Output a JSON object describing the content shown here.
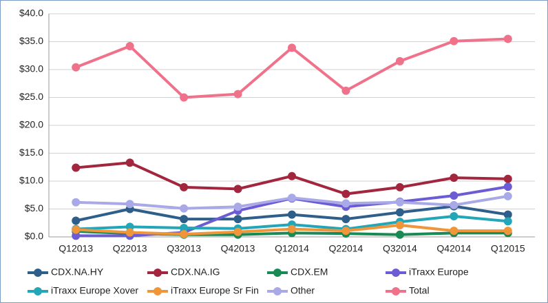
{
  "chart_data": {
    "type": "line",
    "categories": [
      "Q12013",
      "Q22013",
      "Q32013",
      "Q42013",
      "Q12014",
      "Q22014",
      "Q32014",
      "Q42014",
      "Q12015"
    ],
    "series": [
      {
        "name": "CDX.NA.HY",
        "color": "#2e5f8a",
        "values": [
          2.9,
          5.0,
          3.2,
          3.2,
          4.0,
          3.2,
          4.4,
          5.5,
          4.0
        ]
      },
      {
        "name": "CDX.NA.IG",
        "color": "#a3263f",
        "values": [
          12.4,
          13.3,
          8.9,
          8.6,
          10.9,
          7.7,
          8.9,
          10.6,
          10.4
        ]
      },
      {
        "name": "CDX.EM",
        "color": "#1a8a55",
        "values": [
          1.0,
          0.6,
          0.4,
          0.4,
          0.7,
          0.6,
          0.4,
          0.7,
          0.7
        ]
      },
      {
        "name": "iTraxx Europe",
        "color": "#6b5bd4",
        "values": [
          0.2,
          0.2,
          0.8,
          4.7,
          6.9,
          5.4,
          6.3,
          7.4,
          9.0
        ]
      },
      {
        "name": "iTraxx Europe Xover",
        "color": "#22a6b8",
        "values": [
          1.4,
          1.8,
          1.6,
          1.5,
          2.2,
          1.4,
          2.7,
          3.7,
          2.8
        ]
      },
      {
        "name": "iTraxx Europe Sr Fin",
        "color": "#f0963a",
        "values": [
          1.3,
          0.8,
          0.5,
          0.9,
          1.4,
          1.1,
          2.1,
          1.1,
          1.1
        ]
      },
      {
        "name": "Other",
        "color": "#a9a9e8",
        "values": [
          6.2,
          5.9,
          5.1,
          5.4,
          7.0,
          6.0,
          6.2,
          5.7,
          7.3
        ]
      },
      {
        "name": "Total",
        "color": "#f0718a",
        "values": [
          30.4,
          34.2,
          25.0,
          25.6,
          33.9,
          26.2,
          31.5,
          35.1,
          35.5
        ]
      }
    ],
    "ylim": [
      0,
      40
    ],
    "yticks": [
      {
        "value": 0,
        "label": "$0.0"
      },
      {
        "value": 5,
        "label": "$5.0"
      },
      {
        "value": 10,
        "label": "$10.0"
      },
      {
        "value": 15,
        "label": "$15.0"
      },
      {
        "value": 20,
        "label": "$20.0"
      },
      {
        "value": 25,
        "label": "$25.0"
      },
      {
        "value": 30,
        "label": "$30.0"
      },
      {
        "value": 35,
        "label": "$35.0"
      },
      {
        "value": 40,
        "label": "$40.0"
      }
    ],
    "grid": true,
    "legend": "bottom"
  }
}
